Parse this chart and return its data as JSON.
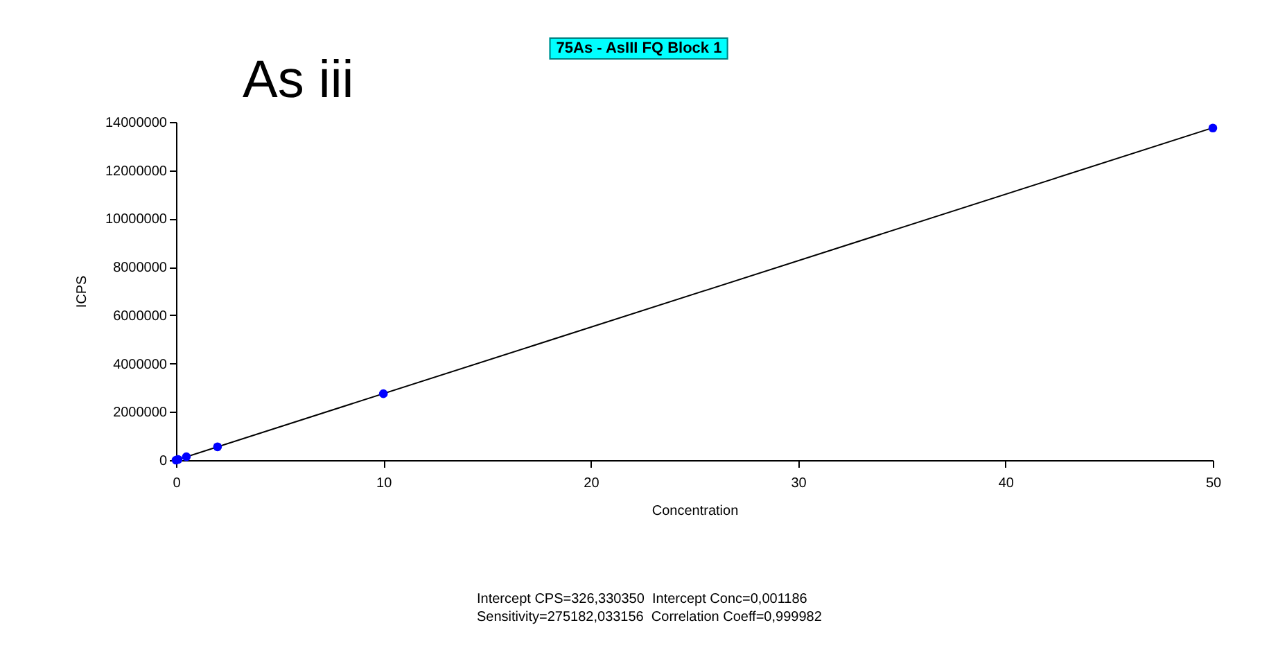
{
  "chart_data": {
    "type": "scatter",
    "title": "75As - AsIII FQ Block 1",
    "subtitle": "As iii",
    "xlabel": "Concentration",
    "ylabel": "ICPS",
    "xlim": [
      0,
      50
    ],
    "xticks": [
      0,
      10,
      20,
      30,
      40,
      50
    ],
    "ylim": [
      0,
      14000000
    ],
    "yticks": [
      0,
      2000000,
      4000000,
      6000000,
      8000000,
      10000000,
      12000000,
      14000000
    ],
    "grid": false,
    "series": [
      {
        "type": "line",
        "color": "#000000",
        "marker": "none",
        "x": [
          0,
          50
        ],
        "values": [
          0,
          13760000
        ]
      },
      {
        "color": "#0000ff",
        "marker": "circle",
        "x": [
          0,
          0.1,
          0.5,
          2,
          10,
          50
        ],
        "values": [
          0,
          30000,
          140000,
          550000,
          2750000,
          13750000
        ]
      }
    ],
    "annotations": [
      "Intercept CPS=326,330350  Intercept Conc=0,001186",
      "Sensitivity=275182,033156  Correlation Coeff=0,999982"
    ]
  }
}
